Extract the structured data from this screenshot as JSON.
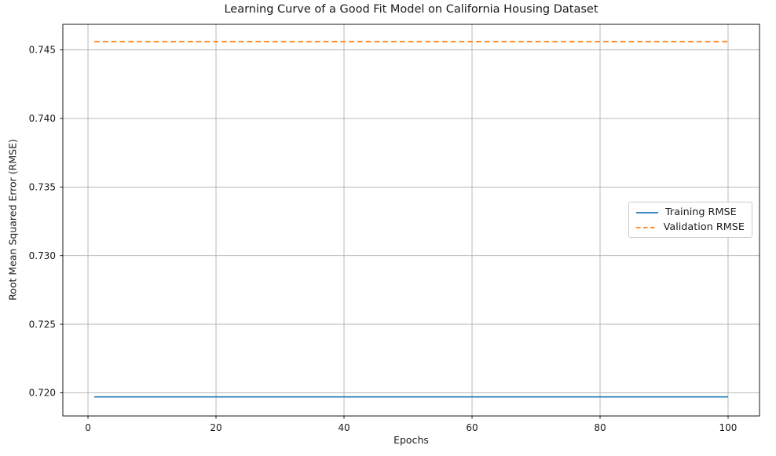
{
  "chart_data": {
    "type": "line",
    "title": "Learning Curve of a Good Fit Model on California Housing Dataset",
    "xlabel": "Epochs",
    "ylabel": "Root Mean Squared Error (RMSE)",
    "xlim": [
      -3.93,
      104.91
    ],
    "ylim": [
      0.71831,
      0.74686
    ],
    "xticks": [
      0,
      20,
      40,
      60,
      80,
      100
    ],
    "xtick_labels": [
      "0",
      "20",
      "40",
      "60",
      "80",
      "100"
    ],
    "yticks": [
      0.72,
      0.725,
      0.73,
      0.735,
      0.74,
      0.745
    ],
    "ytick_labels": [
      "0.720",
      "0.725",
      "0.730",
      "0.735",
      "0.740",
      "0.745"
    ],
    "grid": true,
    "grid_color": "#b2b2b2",
    "spine_color": "#1a1a1a",
    "background_color": "#ffffff",
    "legend": {
      "position": "center right",
      "entries": [
        {
          "label": "Training RMSE",
          "color": "#1f77b4",
          "line_style": "solid"
        },
        {
          "label": "Validation RMSE",
          "color": "#ff7f0e",
          "line_style": "dashed"
        }
      ]
    },
    "series": [
      {
        "name": "Training RMSE",
        "color": "#1f77b4",
        "line_style": "solid",
        "x": [
          1,
          100
        ],
        "y": [
          0.7197,
          0.7197
        ]
      },
      {
        "name": "Validation RMSE",
        "color": "#ff7f0e",
        "line_style": "dashed",
        "x": [
          1,
          100
        ],
        "y": [
          0.7456,
          0.7456
        ]
      }
    ]
  }
}
